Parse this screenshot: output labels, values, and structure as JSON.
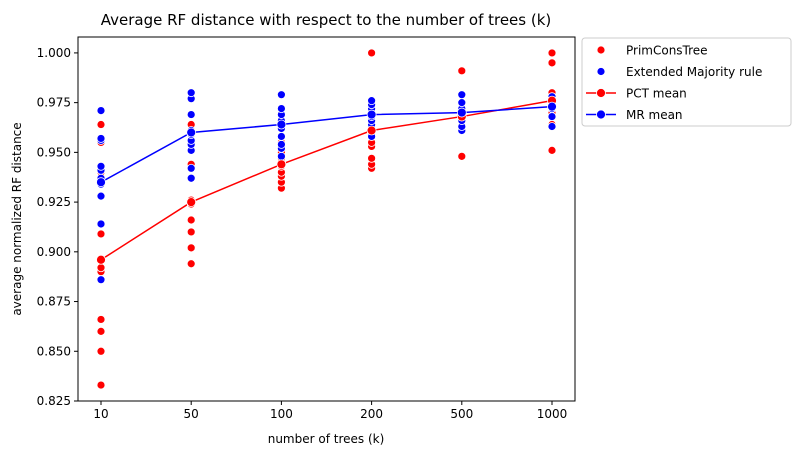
{
  "chart_data": {
    "type": "scatter",
    "title": "Average RF distance with respect to the number of trees (k)",
    "xlabel": "number of trees (k)",
    "ylabel": "average normalized RF distance",
    "categories": [
      "10",
      "50",
      "100",
      "200",
      "500",
      "1000"
    ],
    "ylim": [
      0.825,
      1.008
    ],
    "yticks": [
      0.825,
      0.85,
      0.875,
      0.9,
      0.925,
      0.95,
      0.975,
      1.0
    ],
    "ytick_labels": [
      "0.825",
      "0.850",
      "0.875",
      "0.900",
      "0.925",
      "0.950",
      "0.975",
      "1.000"
    ],
    "grid": false,
    "legend_position": "outside-top-right",
    "series": [
      {
        "name": "PrimConsTree",
        "kind": "scatter",
        "color": "#ff0000",
        "points": [
          [
            "10",
            0.833
          ],
          [
            "10",
            0.85
          ],
          [
            "10",
            0.86
          ],
          [
            "10",
            0.866
          ],
          [
            "10",
            0.89
          ],
          [
            "10",
            0.892
          ],
          [
            "10",
            0.896
          ],
          [
            "10",
            0.909
          ],
          [
            "10",
            0.94
          ],
          [
            "10",
            0.955
          ],
          [
            "10",
            0.964
          ],
          [
            "50",
            0.894
          ],
          [
            "50",
            0.902
          ],
          [
            "50",
            0.91
          ],
          [
            "50",
            0.916
          ],
          [
            "50",
            0.924
          ],
          [
            "50",
            0.926
          ],
          [
            "50",
            0.944
          ],
          [
            "50",
            0.955
          ],
          [
            "50",
            0.959
          ],
          [
            "50",
            0.964
          ],
          [
            "100",
            0.932
          ],
          [
            "100",
            0.935
          ],
          [
            "100",
            0.938
          ],
          [
            "100",
            0.94
          ],
          [
            "100",
            0.943
          ],
          [
            "100",
            0.945
          ],
          [
            "100",
            0.947
          ],
          [
            "100",
            0.95
          ],
          [
            "100",
            0.955
          ],
          [
            "200",
            0.942
          ],
          [
            "200",
            0.944
          ],
          [
            "200",
            0.947
          ],
          [
            "200",
            0.953
          ],
          [
            "200",
            0.955
          ],
          [
            "200",
            0.96
          ],
          [
            "200",
            0.964
          ],
          [
            "200",
            0.966
          ],
          [
            "200",
            0.973
          ],
          [
            "200",
            1.0
          ],
          [
            "500",
            0.948
          ],
          [
            "500",
            0.963
          ],
          [
            "500",
            0.966
          ],
          [
            "500",
            0.968
          ],
          [
            "500",
            0.97
          ],
          [
            "500",
            0.972
          ],
          [
            "500",
            0.991
          ],
          [
            "1000",
            0.951
          ],
          [
            "1000",
            0.964
          ],
          [
            "1000",
            0.97
          ],
          [
            "1000",
            0.973
          ],
          [
            "1000",
            0.975
          ],
          [
            "1000",
            0.978
          ],
          [
            "1000",
            0.98
          ],
          [
            "1000",
            0.995
          ],
          [
            "1000",
            1.0
          ]
        ]
      },
      {
        "name": "Extended Majority rule",
        "kind": "scatter",
        "color": "#0000ff",
        "points": [
          [
            "10",
            0.886
          ],
          [
            "10",
            0.914
          ],
          [
            "10",
            0.928
          ],
          [
            "10",
            0.934
          ],
          [
            "10",
            0.937
          ],
          [
            "10",
            0.941
          ],
          [
            "10",
            0.943
          ],
          [
            "10",
            0.956
          ],
          [
            "10",
            0.957
          ],
          [
            "10",
            0.971
          ],
          [
            "50",
            0.937
          ],
          [
            "50",
            0.942
          ],
          [
            "50",
            0.951
          ],
          [
            "50",
            0.954
          ],
          [
            "50",
            0.956
          ],
          [
            "50",
            0.959
          ],
          [
            "50",
            0.961
          ],
          [
            "50",
            0.969
          ],
          [
            "50",
            0.977
          ],
          [
            "50",
            0.98
          ],
          [
            "100",
            0.948
          ],
          [
            "100",
            0.952
          ],
          [
            "100",
            0.954
          ],
          [
            "100",
            0.958
          ],
          [
            "100",
            0.962
          ],
          [
            "100",
            0.964
          ],
          [
            "100",
            0.966
          ],
          [
            "100",
            0.969
          ],
          [
            "100",
            0.972
          ],
          [
            "100",
            0.979
          ],
          [
            "200",
            0.958
          ],
          [
            "200",
            0.961
          ],
          [
            "200",
            0.964
          ],
          [
            "200",
            0.966
          ],
          [
            "200",
            0.968
          ],
          [
            "200",
            0.97
          ],
          [
            "200",
            0.972
          ],
          [
            "200",
            0.974
          ],
          [
            "200",
            0.976
          ],
          [
            "500",
            0.961
          ],
          [
            "500",
            0.963
          ],
          [
            "500",
            0.966
          ],
          [
            "500",
            0.968
          ],
          [
            "500",
            0.97
          ],
          [
            "500",
            0.972
          ],
          [
            "500",
            0.975
          ],
          [
            "500",
            0.979
          ],
          [
            "1000",
            0.963
          ],
          [
            "1000",
            0.968
          ],
          [
            "1000",
            0.972
          ],
          [
            "1000",
            0.974
          ],
          [
            "1000",
            0.976
          ],
          [
            "1000",
            0.978
          ]
        ]
      },
      {
        "name": "PCT mean",
        "kind": "line",
        "color": "#ff0000",
        "values": [
          0.896,
          0.925,
          0.944,
          0.961,
          0.968,
          0.976
        ]
      },
      {
        "name": "MR mean",
        "kind": "line",
        "color": "#0000ff",
        "values": [
          0.935,
          0.96,
          0.964,
          0.969,
          0.97,
          0.973
        ]
      }
    ]
  }
}
